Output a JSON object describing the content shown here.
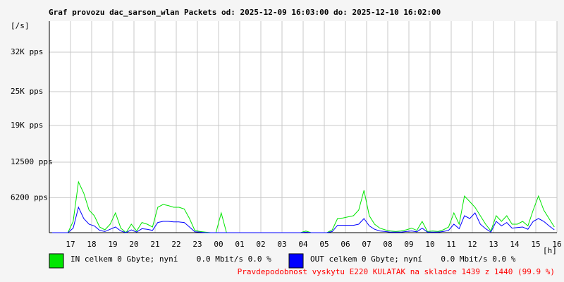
{
  "chart_data": {
    "type": "line",
    "title": "Graf provozu dac_sarson_wlan Packets od: 2025-12-09 16:03:00 do: 2025-12-10 16:02:00",
    "y_label": "[/s]",
    "x_label": "[h]",
    "ylim": [
      0,
      37500
    ],
    "yticks": [
      {
        "value": 6200,
        "label": "6200 pps"
      },
      {
        "value": 12500,
        "label": "12500 pps"
      },
      {
        "value": 19000,
        "label": "19K pps"
      },
      {
        "value": 25000,
        "label": "25K pps"
      },
      {
        "value": 32000,
        "label": "32K pps"
      }
    ],
    "xticks": [
      "17",
      "18",
      "19",
      "20",
      "21",
      "22",
      "23",
      "00",
      "01",
      "02",
      "03",
      "04",
      "05",
      "06",
      "07",
      "08",
      "09",
      "10",
      "11",
      "12",
      "13",
      "14",
      "15",
      "16"
    ],
    "grid": true,
    "series": [
      {
        "name": "IN celkem 0 Gbyte; nyní    0.0 Mbit/s 0.0 %",
        "color": "#00e600",
        "values": [
          0,
          0,
          0,
          0,
          2000,
          9000,
          7000,
          4000,
          3000,
          1000,
          500,
          1500,
          3500,
          800,
          0,
          1500,
          300,
          1800,
          1500,
          1000,
          4500,
          5000,
          4800,
          4500,
          4500,
          4200,
          2500,
          400,
          200,
          100,
          0,
          0,
          3500,
          0,
          0,
          0,
          0,
          0,
          0,
          0,
          0,
          0,
          0,
          0,
          0,
          0,
          0,
          0,
          300,
          0,
          0,
          0,
          0,
          500,
          2500,
          2600,
          2800,
          3000,
          4000,
          7500,
          3000,
          1500,
          800,
          500,
          300,
          200,
          300,
          500,
          800,
          400,
          2000,
          200,
          300,
          200,
          500,
          1000,
          3500,
          1500,
          6500,
          5500,
          4500,
          3000,
          1500,
          300,
          3000,
          2000,
          3000,
          1500,
          1500,
          2000,
          1200,
          4000,
          6500,
          4000,
          2500,
          1000
        ]
      },
      {
        "name": "OUT celkem 0 Gbyte; nyní    0.0 Mbit/s 0.0 %",
        "color": "#0000ff",
        "values": [
          0,
          0,
          0,
          0,
          800,
          4500,
          2500,
          1500,
          1200,
          400,
          200,
          600,
          1000,
          300,
          0,
          500,
          100,
          700,
          600,
          400,
          1800,
          2000,
          2000,
          1900,
          1900,
          1800,
          1000,
          150,
          100,
          0,
          0,
          0,
          0,
          0,
          0,
          0,
          0,
          0,
          0,
          0,
          0,
          0,
          0,
          0,
          0,
          0,
          0,
          0,
          100,
          0,
          0,
          0,
          0,
          200,
          1300,
          1300,
          1300,
          1300,
          1500,
          2500,
          1200,
          600,
          300,
          200,
          100,
          100,
          100,
          200,
          300,
          150,
          800,
          100,
          100,
          100,
          200,
          400,
          1500,
          700,
          3000,
          2500,
          3500,
          1500,
          700,
          100,
          2000,
          1200,
          1800,
          800,
          900,
          1000,
          600,
          2000,
          2500,
          2000,
          1200,
          500
        ]
      }
    ],
    "footer": "Pravdepodobnost vyskytu E220 KULATAK na skladce 1439 z 1440 (99.9 %)"
  }
}
